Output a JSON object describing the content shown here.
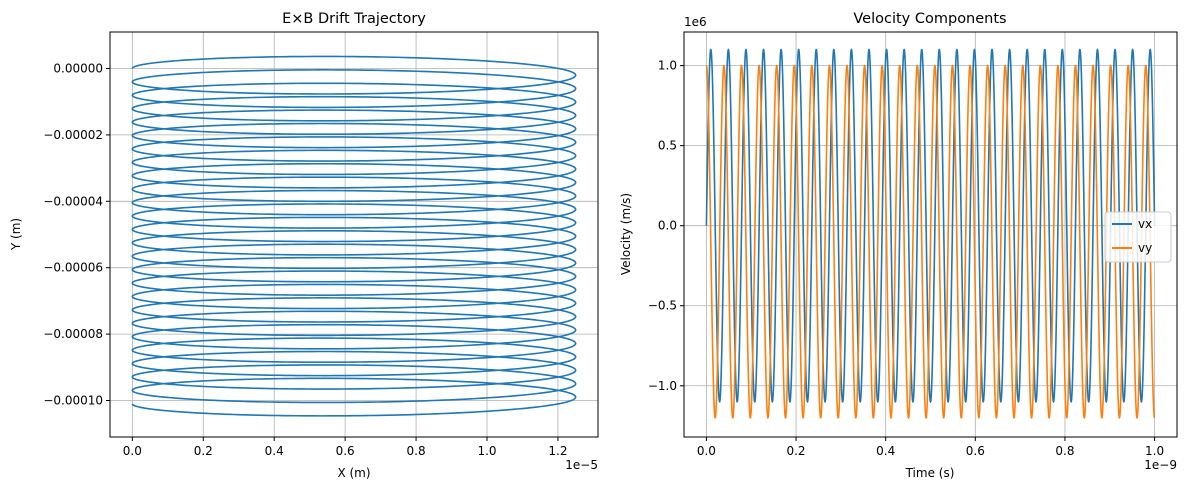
{
  "chart_data": [
    {
      "type": "line",
      "title": "E×B Drift Trajectory",
      "xlabel": "X (m)",
      "ylabel": "Y (m)",
      "x_offset_label": "1e−5",
      "x_scale": 1e-05,
      "xlim": [
        -6.3e-07,
        1.313e-05
      ],
      "ylim": [
        -0.000111,
        1.1e-05
      ],
      "xticks": [
        0.0,
        0.2,
        0.4,
        0.6,
        0.8,
        1.0,
        1.2
      ],
      "xtick_labels": [
        "0.0",
        "0.2",
        "0.4",
        "0.6",
        "0.8",
        "1.0",
        "1.2"
      ],
      "yticks": [
        0,
        -2e-05,
        -4e-05,
        -6e-05,
        -8e-05,
        -0.0001
      ],
      "ytick_labels": [
        "0.00000",
        "−0.00002",
        "−0.00004",
        "−0.00006",
        "−0.00008",
        "−0.00010"
      ],
      "grid": true,
      "series": [
        {
          "color": "#1f77b4",
          "trajectory": {
            "x_min": 0.0,
            "x_max": 1.25e-05,
            "y_start": 0.0,
            "y_end": -0.000101,
            "loop_amplitude": 4.6e-06,
            "loops": 25
          }
        }
      ]
    },
    {
      "type": "line",
      "title": "Velocity Components",
      "xlabel": "Time (s)",
      "ylabel": "Velocity (m/s)",
      "x_offset_label": "1e−9",
      "y_offset_label": "1e6",
      "x_scale": 1e-09,
      "y_scale": 1000000,
      "xlim": [
        -5e-11,
        1.05e-09
      ],
      "ylim": [
        -1320000,
        1210000
      ],
      "xticks": [
        0.0,
        0.2,
        0.4,
        0.6,
        0.8,
        1.0
      ],
      "xtick_labels": [
        "0.0",
        "0.2",
        "0.4",
        "0.6",
        "0.8",
        "1.0"
      ],
      "yticks": [
        -1.0,
        -0.5,
        0.0,
        0.5,
        1.0
      ],
      "ytick_labels": [
        "−1.0",
        "−0.5",
        "0.0",
        "0.5",
        "1.0"
      ],
      "grid": true,
      "legend_position": "center-right",
      "series": [
        {
          "name": "vx",
          "color": "#1f77b4",
          "oscillation": {
            "t_start": 0,
            "t_end": 1e-09,
            "cycles": 25.5,
            "phase": "sine",
            "max": 1100000,
            "min": -1100000
          }
        },
        {
          "name": "vy",
          "color": "#ff7f0e",
          "oscillation": {
            "t_start": 0,
            "t_end": 1e-09,
            "cycles": 25.5,
            "phase": "cosine",
            "max": 1000000,
            "min": -1200000
          }
        }
      ]
    }
  ]
}
